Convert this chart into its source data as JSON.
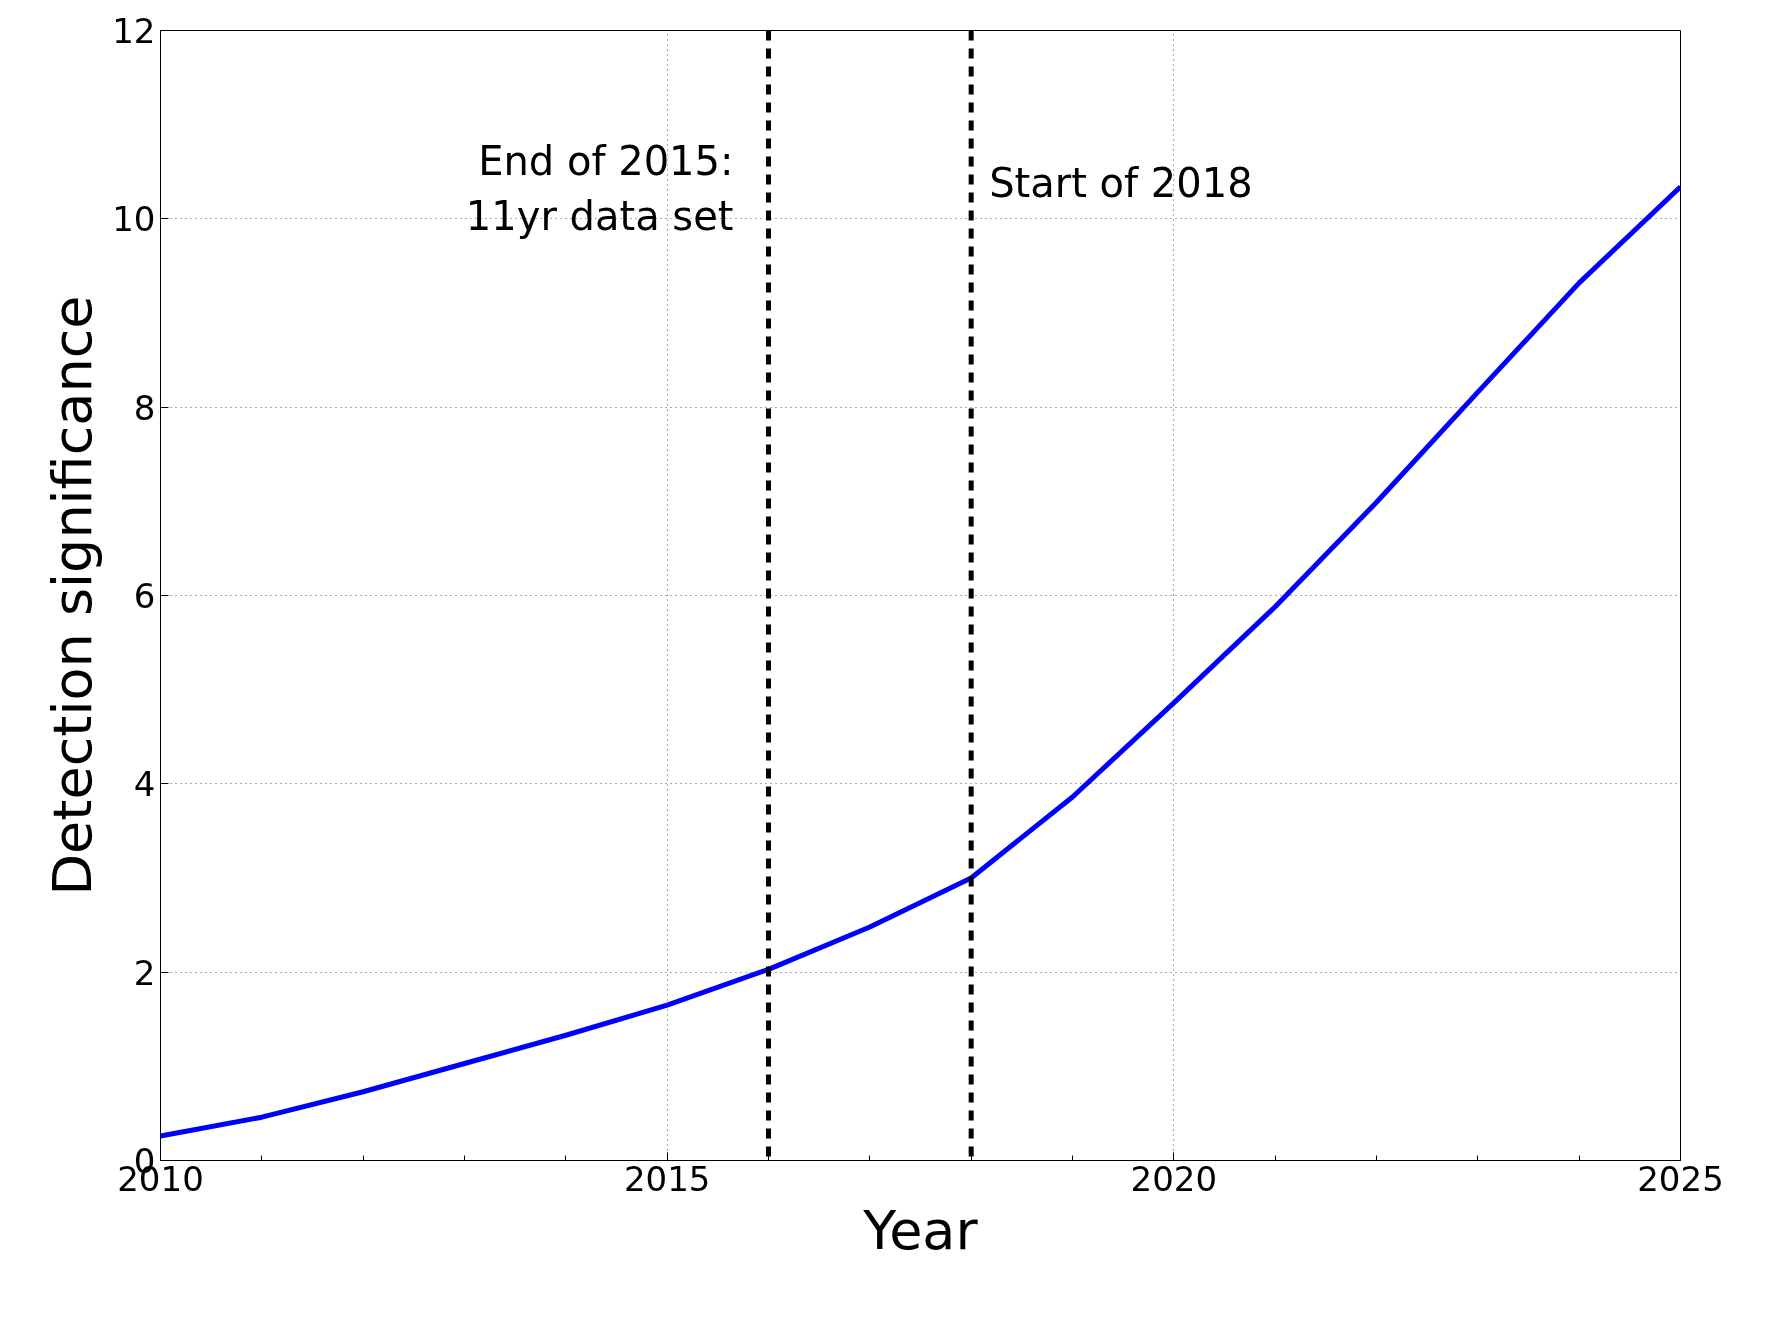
{
  "chart_data": {
    "type": "line",
    "xlabel": "Year",
    "ylabel": "Detection significance",
    "x": [
      2010,
      2011,
      2012,
      2013,
      2014,
      2015,
      2016,
      2017,
      2018,
      2019,
      2020,
      2021,
      2022,
      2023,
      2024,
      2025
    ],
    "series": [
      {
        "color": "#0000ff",
        "values": [
          0.26,
          0.46,
          0.73,
          1.03,
          1.33,
          1.65,
          2.03,
          2.48,
          3.0,
          3.86,
          4.86,
          5.88,
          6.99,
          8.16,
          9.32,
          10.34
        ]
      }
    ],
    "xlim": [
      2010,
      2025
    ],
    "xticks": [
      2010,
      2015,
      2020,
      2025
    ],
    "ylim": [
      0,
      12
    ],
    "yticks": [
      0,
      2,
      4,
      6,
      8,
      10,
      12
    ],
    "ref_lines": [
      {
        "axis": "x",
        "value": 2016,
        "color": "#000000",
        "line_style": "dashed"
      },
      {
        "axis": "x",
        "value": 2018,
        "color": "#000000",
        "line_style": "dashed"
      }
    ],
    "annotations": [
      "End of 2015:\n11yr data set",
      "Start of 2018"
    ],
    "grid": true,
    "line_style": "solid",
    "marker": "none"
  }
}
